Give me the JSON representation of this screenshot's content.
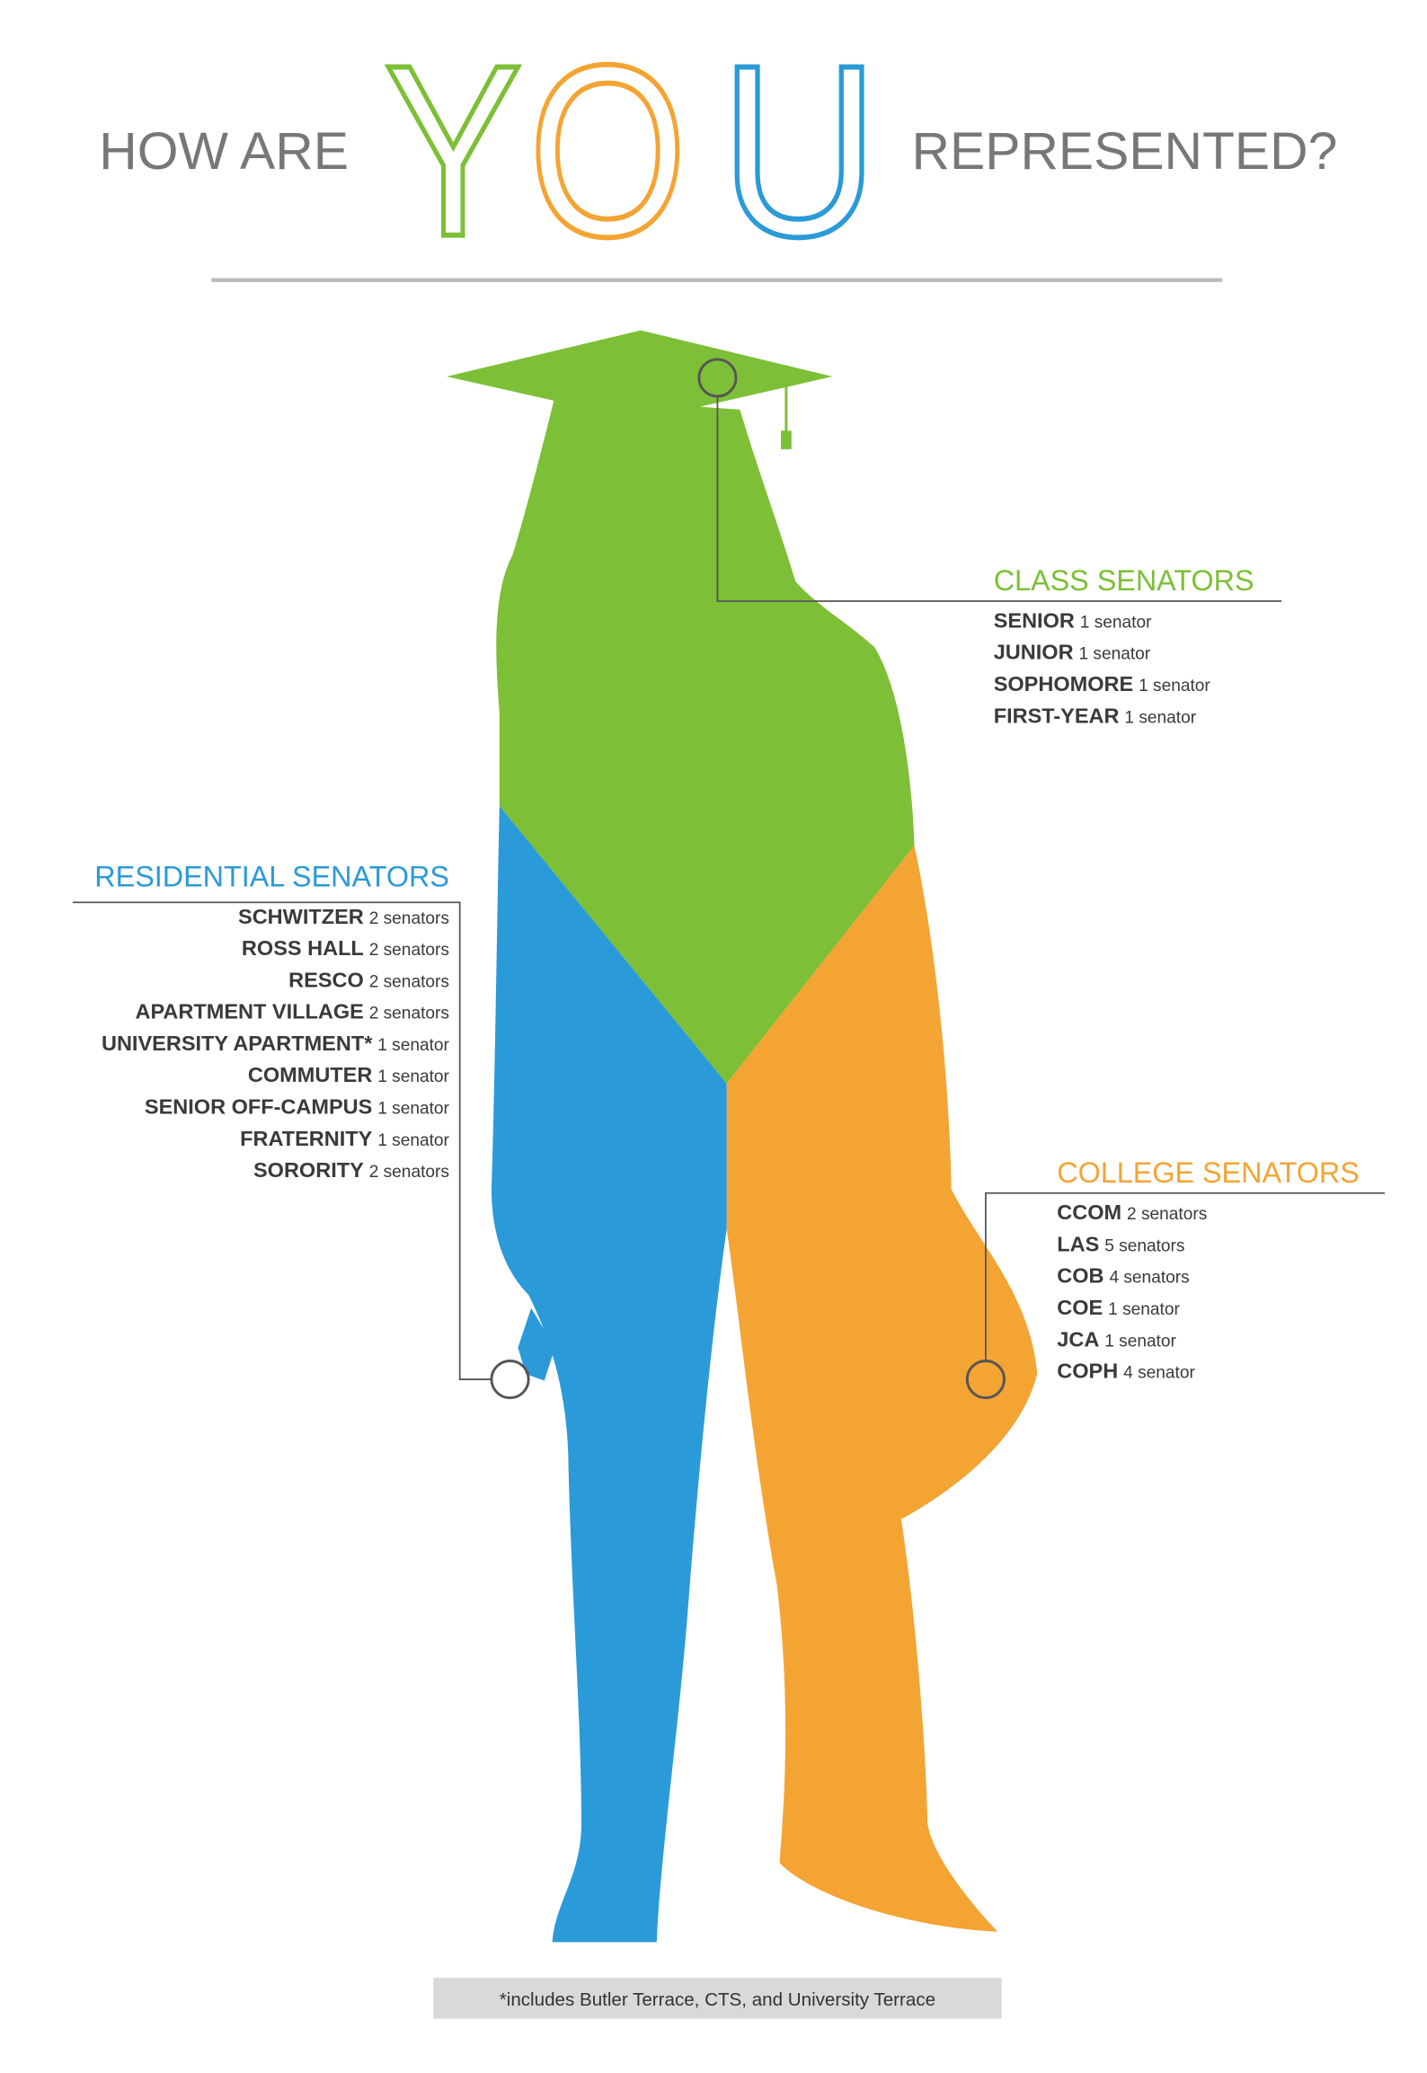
{
  "header": {
    "left": "HOW ARE",
    "you": [
      "Y",
      "O",
      "U"
    ],
    "right": "REPRESENTED?"
  },
  "class_senators": {
    "heading": "CLASS SENATORS",
    "items": [
      {
        "name": "SENIOR",
        "count": "1 senator"
      },
      {
        "name": "JUNIOR",
        "count": "1 senator"
      },
      {
        "name": "SOPHOMORE",
        "count": "1 senator"
      },
      {
        "name": "FIRST-YEAR",
        "count": "1 senator"
      }
    ]
  },
  "residential_senators": {
    "heading": "RESIDENTIAL SENATORS",
    "items": [
      {
        "name": "SCHWITZER",
        "count": "2 senators"
      },
      {
        "name": "ROSS HALL",
        "count": "2 senators"
      },
      {
        "name": "RESCO",
        "count": "2 senators"
      },
      {
        "name": "APARTMENT VILLAGE",
        "count": "2 senators"
      },
      {
        "name": "UNIVERSITY APARTMENT*",
        "count": "1 senator"
      },
      {
        "name": "COMMUTER",
        "count": "1 senator"
      },
      {
        "name": "SENIOR OFF-CAMPUS",
        "count": "1 senator"
      },
      {
        "name": "FRATERNITY",
        "count": "1 senator"
      },
      {
        "name": "SORORITY",
        "count": "2 senators"
      }
    ]
  },
  "college_senators": {
    "heading": "COLLEGE SENATORS",
    "items": [
      {
        "name": "CCOM",
        "count": "2 senators"
      },
      {
        "name": "LAS",
        "count": "5 senators"
      },
      {
        "name": "COB",
        "count": "4 senators"
      },
      {
        "name": "COE",
        "count": "1 senator"
      },
      {
        "name": "JCA",
        "count": "1 senator"
      },
      {
        "name": "COPH",
        "count": "4 senator"
      }
    ]
  },
  "footnote": "*includes Butler Terrace, CTS, and University Terrace"
}
